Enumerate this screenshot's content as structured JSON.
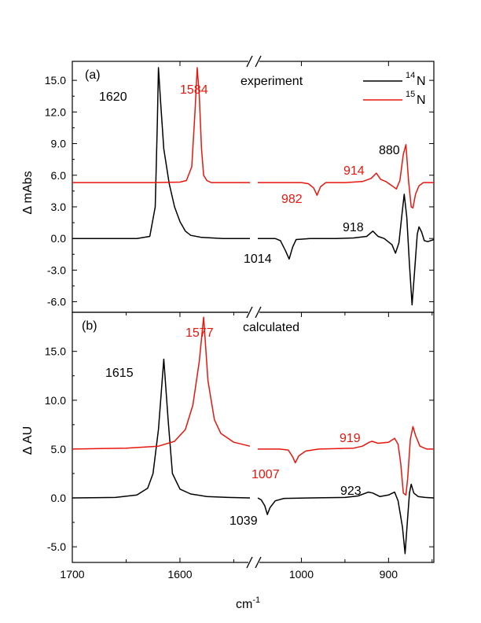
{
  "chart_data": {
    "type": "line",
    "xlabel_main": "cm",
    "xlabel_sup": "-1",
    "x_ticks": [
      "1700",
      "1600",
      "1000",
      "900"
    ],
    "legend": [
      {
        "label_sup": "14",
        "label_main": "N",
        "color": "#000000"
      },
      {
        "label_sup": "15",
        "label_main": "N",
        "color": "#e8160c"
      }
    ],
    "panels": [
      {
        "tag": "(a)",
        "title": "experiment",
        "ylabel": "Δ mAbs",
        "ylim": [
          -7.0,
          16.8
        ],
        "y_ticks": [
          {
            "v": 15.0,
            "t": "15.0"
          },
          {
            "v": 12.0,
            "t": "12.0"
          },
          {
            "v": 9.0,
            "t": "9.0"
          },
          {
            "v": 6.0,
            "t": "6.0"
          },
          {
            "v": 3.0,
            "t": "3.0"
          },
          {
            "v": 0.0,
            "t": "0.0"
          },
          {
            "v": -3.0,
            "t": "-3.0"
          },
          {
            "v": -6.0,
            "t": "-6.0"
          }
        ],
        "series": [
          {
            "color": "#000000",
            "left": [
              [
                1700,
                0.0
              ],
              [
                1640,
                0.0
              ],
              [
                1628,
                0.2
              ],
              [
                1623,
                3.0
              ],
              [
                1621,
                11.0
              ],
              [
                1620,
                16.2
              ],
              [
                1618,
                13.0
              ],
              [
                1615,
                8.5
              ],
              [
                1610,
                5.2
              ],
              [
                1605,
                3.0
              ],
              [
                1600,
                1.6
              ],
              [
                1595,
                0.7
              ],
              [
                1590,
                0.3
              ],
              [
                1580,
                0.1
              ],
              [
                1560,
                0.0
              ],
              [
                1535,
                0.0
              ]
            ],
            "right": [
              [
                1050,
                0.0
              ],
              [
                1030,
                0.0
              ],
              [
                1024,
                -0.2
              ],
              [
                1018,
                -1.2
              ],
              [
                1014,
                -1.95
              ],
              [
                1010,
                -0.8
              ],
              [
                1006,
                -0.1
              ],
              [
                990,
                0.0
              ],
              [
                960,
                0.0
              ],
              [
                940,
                0.05
              ],
              [
                925,
                0.2
              ],
              [
                918,
                0.7
              ],
              [
                912,
                0.2
              ],
              [
                905,
                0.0
              ],
              [
                896,
                -0.6
              ],
              [
                892,
                -1.4
              ],
              [
                888,
                -0.4
              ],
              [
                885,
                2.0
              ],
              [
                882,
                4.2
              ],
              [
                879,
                2.0
              ],
              [
                876,
                -2.5
              ],
              [
                873,
                -6.3
              ],
              [
                870,
                -3.0
              ],
              [
                867,
                0.4
              ],
              [
                865,
                1.1
              ],
              [
                862,
                0.6
              ],
              [
                859,
                -0.2
              ],
              [
                855,
                -0.3
              ],
              [
                848,
                -0.1
              ]
            ]
          },
          {
            "color": "#e8160c",
            "left": [
              [
                1700,
                5.3
              ],
              [
                1650,
                5.3
              ],
              [
                1625,
                5.3
              ],
              [
                1600,
                5.35
              ],
              [
                1594,
                5.5
              ],
              [
                1589,
                6.8
              ],
              [
                1586,
                12.0
              ],
              [
                1584,
                16.2
              ],
              [
                1582,
                13.5
              ],
              [
                1580,
                8.5
              ],
              [
                1578,
                6.0
              ],
              [
                1575,
                5.5
              ],
              [
                1571,
                5.3
              ],
              [
                1560,
                5.3
              ],
              [
                1545,
                5.3
              ],
              [
                1535,
                5.3
              ]
            ],
            "right": [
              [
                1050,
                5.3
              ],
              [
                1000,
                5.3
              ],
              [
                992,
                5.2
              ],
              [
                986,
                4.8
              ],
              [
                982,
                4.1
              ],
              [
                978,
                4.9
              ],
              [
                972,
                5.3
              ],
              [
                950,
                5.3
              ],
              [
                930,
                5.4
              ],
              [
                920,
                5.7
              ],
              [
                914,
                6.2
              ],
              [
                909,
                5.6
              ],
              [
                903,
                5.4
              ],
              [
                896,
                5.0
              ],
              [
                891,
                4.7
              ],
              [
                887,
                5.5
              ],
              [
                883,
                8.0
              ],
              [
                880,
                8.9
              ],
              [
                877,
                5.5
              ],
              [
                874,
                3.0
              ],
              [
                872,
                2.9
              ],
              [
                869,
                4.2
              ],
              [
                865,
                5.0
              ],
              [
                860,
                5.3
              ],
              [
                848,
                5.3
              ]
            ]
          }
        ],
        "annotations": [
          {
            "text": "1620",
            "color": "#000000"
          },
          {
            "text": "1584",
            "color": "#e8160c"
          },
          {
            "text": "880",
            "color": "#000000"
          },
          {
            "text": "914",
            "color": "#e8160c"
          },
          {
            "text": "982",
            "color": "#e8160c"
          },
          {
            "text": "918",
            "color": "#000000"
          },
          {
            "text": "1014",
            "color": "#000000"
          }
        ]
      },
      {
        "tag": "(b)",
        "title": "calculated",
        "ylabel": "Δ AU",
        "ylim": [
          -6.6,
          19.0
        ],
        "y_ticks": [
          {
            "v": 15.0,
            "t": "15.0"
          },
          {
            "v": 10.0,
            "t": "10.0"
          },
          {
            "v": 5.0,
            "t": "5.0"
          },
          {
            "v": 0.0,
            "t": "0.0"
          },
          {
            "v": -5.0,
            "t": "-5.0"
          }
        ],
        "series": [
          {
            "color": "#000000",
            "left": [
              [
                1700,
                0.0
              ],
              [
                1660,
                0.05
              ],
              [
                1640,
                0.3
              ],
              [
                1630,
                1.0
              ],
              [
                1625,
                2.5
              ],
              [
                1620,
                7.0
              ],
              [
                1615,
                14.2
              ],
              [
                1611,
                8.0
              ],
              [
                1607,
                2.5
              ],
              [
                1600,
                0.9
              ],
              [
                1590,
                0.4
              ],
              [
                1575,
                0.15
              ],
              [
                1555,
                0.05
              ],
              [
                1535,
                0.0
              ]
            ],
            "right": [
              [
                1050,
                0.0
              ],
              [
                1046,
                -0.2
              ],
              [
                1042,
                -0.8
              ],
              [
                1039,
                -1.7
              ],
              [
                1036,
                -1.0
              ],
              [
                1030,
                -0.3
              ],
              [
                1020,
                -0.05
              ],
              [
                990,
                0.0
              ],
              [
                950,
                0.05
              ],
              [
                935,
                0.2
              ],
              [
                923,
                0.6
              ],
              [
                918,
                0.5
              ],
              [
                910,
                0.15
              ],
              [
                900,
                0.3
              ],
              [
                893,
                0.6
              ],
              [
                889,
                -0.3
              ],
              [
                884,
                -3.0
              ],
              [
                881,
                -5.7
              ],
              [
                878,
                -2.0
              ],
              [
                876,
                0.5
              ],
              [
                874,
                1.4
              ],
              [
                871,
                0.5
              ],
              [
                866,
                0.15
              ],
              [
                858,
                0.05
              ],
              [
                848,
                0.0
              ]
            ]
          },
          {
            "color": "#e8160c",
            "left": [
              [
                1700,
                5.0
              ],
              [
                1650,
                5.1
              ],
              [
                1620,
                5.3
              ],
              [
                1605,
                5.8
              ],
              [
                1595,
                7.0
              ],
              [
                1588,
                9.5
              ],
              [
                1582,
                14.0
              ],
              [
                1578,
                18.5
              ],
              [
                1574,
                12.0
              ],
              [
                1568,
                8.0
              ],
              [
                1562,
                6.6
              ],
              [
                1550,
                5.7
              ],
              [
                1535,
                5.3
              ]
            ],
            "right": [
              [
                1050,
                5.0
              ],
              [
                1025,
                5.0
              ],
              [
                1015,
                4.9
              ],
              [
                1010,
                4.2
              ],
              [
                1007,
                3.6
              ],
              [
                1003,
                4.3
              ],
              [
                995,
                4.8
              ],
              [
                980,
                5.0
              ],
              [
                940,
                5.1
              ],
              [
                930,
                5.3
              ],
              [
                922,
                5.7
              ],
              [
                919,
                5.8
              ],
              [
                912,
                5.6
              ],
              [
                900,
                5.7
              ],
              [
                893,
                6.1
              ],
              [
                889,
                5.5
              ],
              [
                886,
                3.5
              ],
              [
                883,
                0.5
              ],
              [
                880,
                0.3
              ],
              [
                878,
                2.0
              ],
              [
                875,
                6.0
              ],
              [
                872,
                7.3
              ],
              [
                869,
                6.4
              ],
              [
                864,
                5.3
              ],
              [
                856,
                5.0
              ],
              [
                848,
                5.0
              ]
            ]
          }
        ],
        "annotations": [
          {
            "text": "1615",
            "color": "#000000"
          },
          {
            "text": "1577",
            "color": "#e8160c"
          },
          {
            "text": "919",
            "color": "#e8160c"
          },
          {
            "text": "1007",
            "color": "#e8160c"
          },
          {
            "text": "923",
            "color": "#000000"
          },
          {
            "text": "1039",
            "color": "#000000"
          }
        ]
      }
    ]
  }
}
